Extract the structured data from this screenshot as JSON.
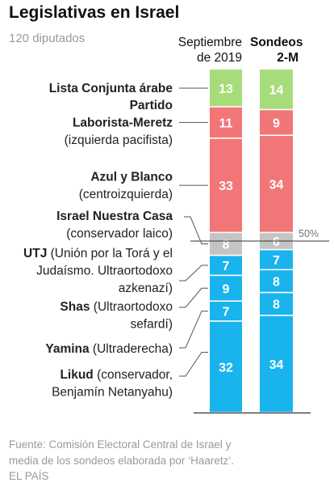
{
  "header": {
    "title": "Legislativas en Israel",
    "subtitle": "120 diputados"
  },
  "columns": [
    {
      "lines": [
        "Septiembre",
        "de 2019"
      ]
    },
    {
      "lines": [
        "Sondeos",
        "2-M"
      ]
    }
  ],
  "chart_data": {
    "type": "bar",
    "stacked": true,
    "categories": [
      "Septiembre de 2019",
      "Sondeos 2-M"
    ],
    "series": [
      {
        "name": "Lista Conjunta árabe",
        "label_lines": [
          [
            "Lista Conjunta árabe",
            ""
          ]
        ],
        "color": "#a6dc7a",
        "values": [
          13,
          14
        ]
      },
      {
        "name": "Partido Laborista-Meretz",
        "label_lines": [
          [
            "Partido",
            ""
          ],
          [
            "Laborista-Meretz",
            ""
          ],
          [
            "",
            "(izquierda pacifista)"
          ]
        ],
        "color": "#f27577",
        "values": [
          11,
          9
        ]
      },
      {
        "name": "Azul y Blanco",
        "label_lines": [
          [
            "Azul y Blanco",
            ""
          ],
          [
            "",
            "(centroizquierda)"
          ]
        ],
        "color": "#f27577",
        "values": [
          33,
          34
        ]
      },
      {
        "name": "Israel Nuestra Casa",
        "label_lines": [
          [
            "Israel Nuestra Casa",
            ""
          ],
          [
            "",
            "(conservador laico)"
          ]
        ],
        "color": "#c4c4c4",
        "values": [
          8,
          6
        ]
      },
      {
        "name": "UTJ",
        "label_lines": [
          [
            "UTJ",
            " (Unión por la Torá y el"
          ],
          [
            "",
            "Judaísmo. Ultraortodoxo"
          ],
          [
            "",
            "azkenazí)"
          ]
        ],
        "color": "#19b3ee",
        "values": [
          7,
          7
        ]
      },
      {
        "name": "Shas",
        "label_lines": [
          [
            "Shas",
            " (Ultraortodoxo"
          ],
          [
            "",
            "sefardí)"
          ]
        ],
        "color": "#19b3ee",
        "values": [
          9,
          8
        ]
      },
      {
        "name": "Yamina",
        "label_lines": [
          [
            "Yamina",
            " (Ultraderecha)"
          ]
        ],
        "color": "#19b3ee",
        "values": [
          7,
          8
        ]
      },
      {
        "name": "Likud",
        "label_lines": [
          [
            "Likud",
            " (conservador,"
          ],
          [
            "",
            "Benjamín Netanyahu)"
          ]
        ],
        "color": "#19b3ee",
        "values": [
          32,
          34
        ]
      }
    ],
    "total": 120,
    "majority_label": "50%",
    "majority_value": 60
  },
  "source": {
    "lines": [
      "Fuente: Comisión Electoral Central de Israel y",
      "media de los sondeos elaborada por ‘Haaretz’.",
      "EL PAÍS"
    ]
  }
}
